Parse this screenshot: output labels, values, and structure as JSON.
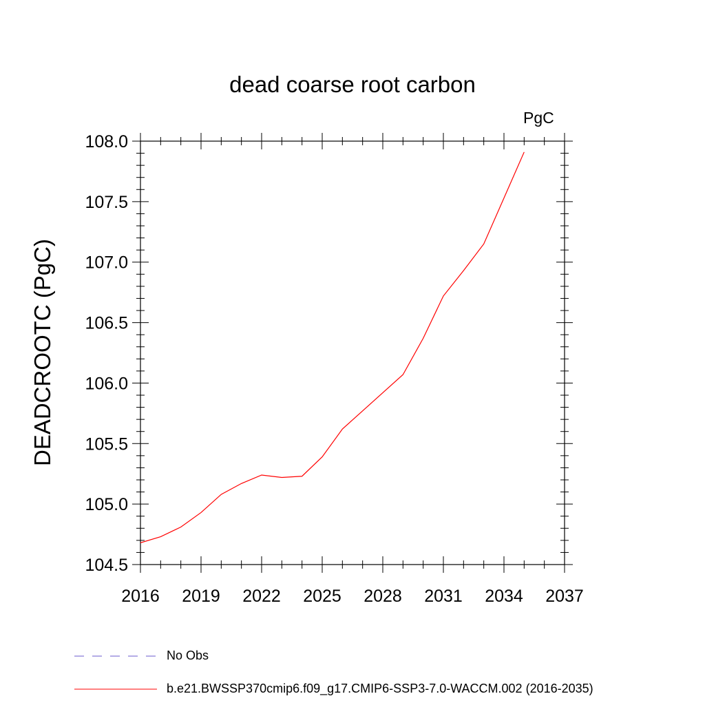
{
  "chart_data": {
    "type": "line",
    "title": "dead coarse root carbon",
    "units": "PgC",
    "xlabel": "",
    "ylabel": "DEADCROOTC  (PgC)",
    "xlim": [
      2016,
      2037
    ],
    "ylim": [
      104.5,
      108.0
    ],
    "x_ticks": [
      "2016",
      "2019",
      "2022",
      "2025",
      "2028",
      "2031",
      "2034",
      "2037"
    ],
    "y_ticks": [
      "104.5",
      "105.0",
      "105.5",
      "106.0",
      "106.5",
      "107.0",
      "107.5",
      "108.0"
    ],
    "grid": false,
    "legend_position": "bottom",
    "series": [
      {
        "name": "b.e21.BWSSP370cmip6.f09_g17.CMIP6-SSP3-7.0-WACCM.002 (2016-2035)",
        "color": "#ff0000",
        "style": "solid",
        "x": [
          2016,
          2017,
          2018,
          2019,
          2020,
          2021,
          2022,
          2023,
          2024,
          2025,
          2026,
          2027,
          2028,
          2029,
          2030,
          2031,
          2032,
          2033,
          2034,
          2035
        ],
        "values": [
          104.68,
          104.73,
          104.81,
          104.93,
          105.08,
          105.17,
          105.24,
          105.22,
          105.23,
          105.39,
          105.62,
          105.77,
          105.92,
          106.07,
          106.37,
          106.72,
          106.93,
          107.15,
          107.53,
          107.91
        ]
      }
    ],
    "legend": [
      {
        "label": "No Obs",
        "color": "#6a5acd",
        "style": "dashed"
      },
      {
        "label": "b.e21.BWSSP370cmip6.f09_g17.CMIP6-SSP3-7.0-WACCM.002 (2016-2035)",
        "color": "#ff0000",
        "style": "solid"
      }
    ]
  }
}
